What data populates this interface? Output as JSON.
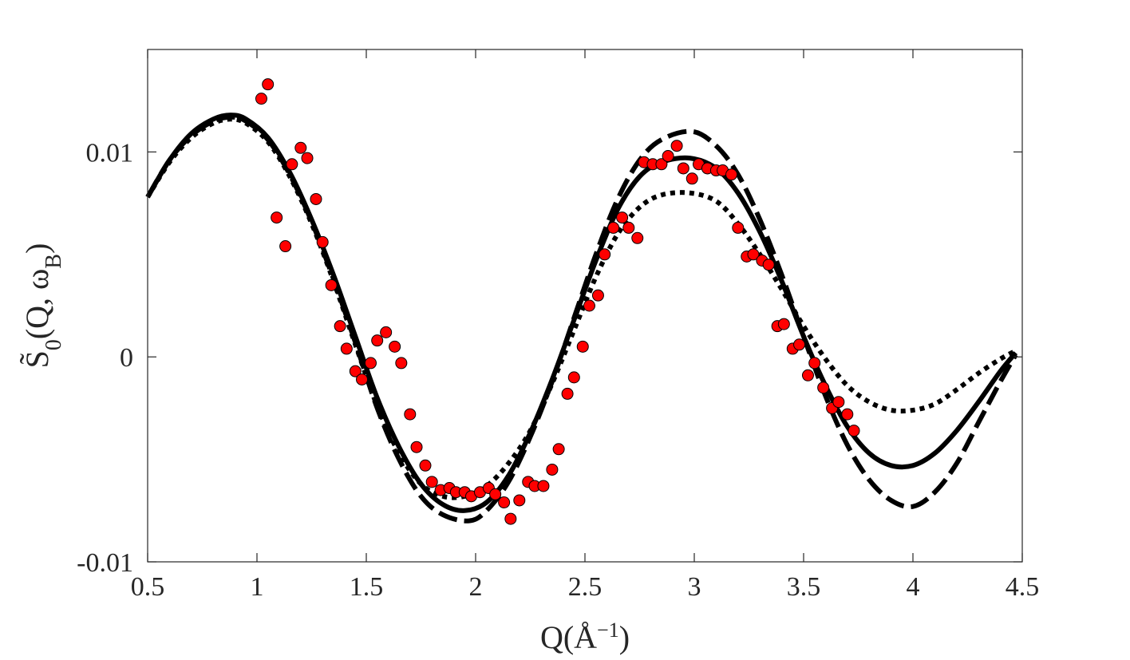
{
  "chart_data": {
    "type": "scatter",
    "title": "",
    "xlabel": "Q(Å⁻¹)",
    "ylabel": "S̃₀(Q, ω_B)",
    "xlabel_parts": {
      "main": "Q(Å",
      "sup": "−1",
      "close": ")"
    },
    "ylabel_parts": {
      "main": "S̃",
      "sub0": "0",
      "args": "(Q, ω",
      "subB": "B",
      "close": ")"
    },
    "xlim": [
      0.5,
      4.5
    ],
    "ylim": [
      -0.01,
      0.015
    ],
    "xticks": [
      0.5,
      1,
      1.5,
      2,
      2.5,
      3,
      3.5,
      4,
      4.5
    ],
    "xtick_labels": [
      "0.5",
      "1",
      "1.5",
      "2",
      "2.5",
      "3",
      "3.5",
      "4",
      "4.5"
    ],
    "yticks": [
      -0.01,
      0,
      0.01
    ],
    "ytick_labels": [
      "-0.01",
      "0",
      "0.01"
    ],
    "grid": false,
    "legend": "none",
    "colors": {
      "axis": "#262626",
      "line": "#000000",
      "marker_fill": "#ff0000",
      "marker_edge": "#000000"
    },
    "series": [
      {
        "name": "solid",
        "style": "solid",
        "x": [
          0.5,
          0.6,
          0.7,
          0.8,
          0.88,
          0.95,
          1.05,
          1.15,
          1.25,
          1.35,
          1.45,
          1.55,
          1.65,
          1.75,
          1.85,
          1.95,
          2.05,
          2.15,
          2.25,
          2.35,
          2.45,
          2.55,
          2.65,
          2.75,
          2.85,
          2.98,
          3.1,
          3.2,
          3.3,
          3.4,
          3.5,
          3.6,
          3.7,
          3.8,
          3.9,
          4.0,
          4.1,
          4.2,
          4.3,
          4.4,
          4.47
        ],
        "y": [
          0.0078,
          0.0096,
          0.0109,
          0.0116,
          0.0118,
          0.0116,
          0.0107,
          0.009,
          0.0067,
          0.004,
          0.001,
          -0.002,
          -0.0044,
          -0.0062,
          -0.0072,
          -0.0075,
          -0.0071,
          -0.0058,
          -0.0037,
          -0.0011,
          0.0018,
          0.0047,
          0.0072,
          0.0088,
          0.0095,
          0.0097,
          0.0092,
          0.008,
          0.0061,
          0.0037,
          0.001,
          -0.0014,
          -0.0034,
          -0.0047,
          -0.0053,
          -0.0053,
          -0.0047,
          -0.0036,
          -0.0022,
          -0.0007,
          0.0002
        ]
      },
      {
        "name": "dashed",
        "style": "dashed",
        "x": [
          0.5,
          0.6,
          0.7,
          0.8,
          0.88,
          0.95,
          1.05,
          1.15,
          1.25,
          1.35,
          1.45,
          1.55,
          1.65,
          1.75,
          1.85,
          1.97,
          2.05,
          2.15,
          2.25,
          2.35,
          2.45,
          2.55,
          2.65,
          2.75,
          2.85,
          2.99,
          3.1,
          3.2,
          3.3,
          3.4,
          3.5,
          3.6,
          3.7,
          3.8,
          3.9,
          4.0,
          4.1,
          4.2,
          4.3,
          4.4,
          4.47
        ],
        "y": [
          0.0078,
          0.0096,
          0.0108,
          0.0115,
          0.0117,
          0.0115,
          0.0106,
          0.0089,
          0.0066,
          0.0038,
          0.0007,
          -0.0025,
          -0.005,
          -0.0068,
          -0.0077,
          -0.008,
          -0.0075,
          -0.0061,
          -0.0039,
          -0.0012,
          0.0019,
          0.005,
          0.0077,
          0.0096,
          0.0106,
          0.011,
          0.0103,
          0.0089,
          0.0067,
          0.004,
          0.001,
          -0.0019,
          -0.0043,
          -0.006,
          -0.007,
          -0.0073,
          -0.0066,
          -0.0052,
          -0.0032,
          -0.0012,
          0.0001
        ]
      },
      {
        "name": "dotted",
        "style": "dotted",
        "x": [
          0.5,
          0.6,
          0.7,
          0.8,
          0.88,
          0.95,
          1.05,
          1.15,
          1.25,
          1.35,
          1.45,
          1.55,
          1.65,
          1.75,
          1.85,
          1.95,
          2.05,
          2.15,
          2.25,
          2.35,
          2.45,
          2.55,
          2.65,
          2.75,
          2.85,
          2.98,
          3.1,
          3.2,
          3.3,
          3.4,
          3.5,
          3.6,
          3.7,
          3.8,
          3.9,
          4.0,
          4.1,
          4.2,
          4.3,
          4.4,
          4.47
        ],
        "y": [
          0.0078,
          0.0095,
          0.0107,
          0.0114,
          0.0116,
          0.0114,
          0.0105,
          0.0088,
          0.0065,
          0.0037,
          0.0006,
          -0.0024,
          -0.0047,
          -0.0062,
          -0.0068,
          -0.0068,
          -0.0063,
          -0.0052,
          -0.0036,
          -0.0013,
          0.0013,
          0.0039,
          0.006,
          0.0073,
          0.0079,
          0.008,
          0.0076,
          0.0065,
          0.005,
          0.0033,
          0.0015,
          -0.0001,
          -0.0014,
          -0.0022,
          -0.0026,
          -0.0026,
          -0.0023,
          -0.0016,
          -0.0008,
          -0.0001,
          0.0003
        ]
      },
      {
        "name": "data",
        "style": "markers",
        "x": [
          1.02,
          1.05,
          1.09,
          1.13,
          1.16,
          1.2,
          1.23,
          1.27,
          1.3,
          1.34,
          1.38,
          1.41,
          1.45,
          1.48,
          1.52,
          1.55,
          1.59,
          1.63,
          1.66,
          1.7,
          1.73,
          1.77,
          1.8,
          1.84,
          1.88,
          1.91,
          1.95,
          1.98,
          2.02,
          2.06,
          2.09,
          2.13,
          2.16,
          2.2,
          2.24,
          2.27,
          2.31,
          2.35,
          2.38,
          2.42,
          2.45,
          2.49,
          2.52,
          2.56,
          2.59,
          2.63,
          2.67,
          2.7,
          2.74,
          2.77,
          2.81,
          2.85,
          2.88,
          2.92,
          2.95,
          2.99,
          3.02,
          3.06,
          3.1,
          3.13,
          3.17,
          3.2,
          3.24,
          3.27,
          3.31,
          3.34,
          3.38,
          3.41,
          3.45,
          3.48,
          3.52,
          3.55,
          3.59,
          3.63,
          3.66,
          3.7,
          3.73
        ],
        "y": [
          0.0126,
          0.0133,
          0.0068,
          0.0054,
          0.0094,
          0.0102,
          0.0097,
          0.0077,
          0.0056,
          0.0035,
          0.0015,
          0.0004,
          -0.0007,
          -0.0011,
          -0.0003,
          0.0008,
          0.0012,
          0.0005,
          -0.0003,
          -0.0028,
          -0.0044,
          -0.0053,
          -0.0061,
          -0.0065,
          -0.0064,
          -0.0066,
          -0.0066,
          -0.0068,
          -0.0066,
          -0.0064,
          -0.0067,
          -0.0071,
          -0.0079,
          -0.007,
          -0.0061,
          -0.0063,
          -0.0063,
          -0.0055,
          -0.0045,
          -0.0018,
          -0.001,
          0.0005,
          0.0025,
          0.003,
          0.005,
          0.0063,
          0.0068,
          0.0063,
          0.0058,
          0.0095,
          0.0094,
          0.0094,
          0.0098,
          0.0103,
          0.0092,
          0.0087,
          0.0094,
          0.0092,
          0.0091,
          0.0091,
          0.0089,
          0.0063,
          0.0049,
          0.005,
          0.0047,
          0.0045,
          0.0015,
          0.0016,
          0.0004,
          0.0006,
          -0.0009,
          -0.0003,
          -0.0015,
          -0.0025,
          -0.0022,
          -0.0028,
          -0.0036
        ]
      }
    ]
  }
}
